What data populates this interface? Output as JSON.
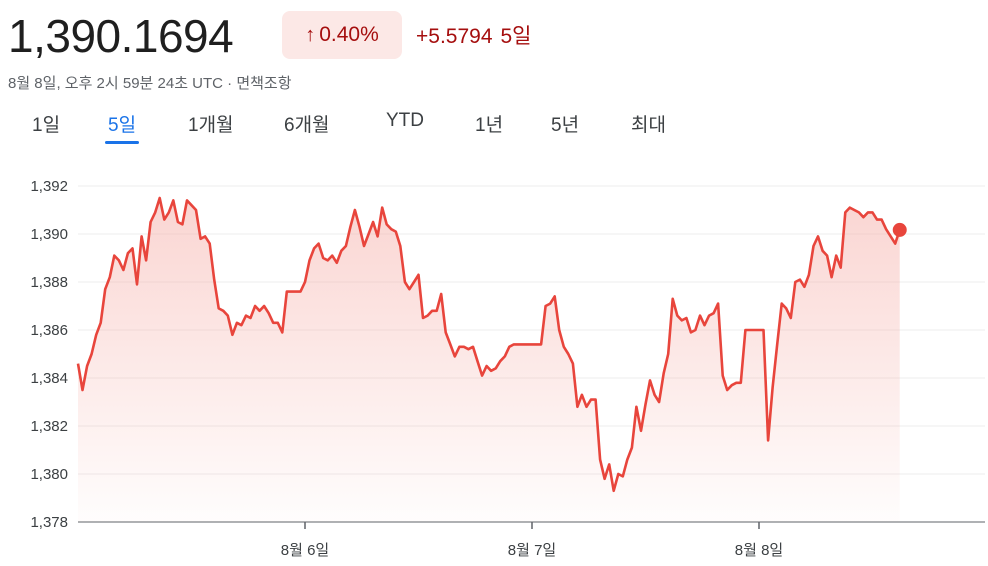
{
  "header": {
    "price": "1,390.1694",
    "change_arrow": "↑",
    "change_percent": "0.40%",
    "change_abs": "+5.5794",
    "change_period": "5일",
    "subtitle": "8월 8일, 오후 2시 59분 24초 UTC · 면책조항",
    "arrow_icon": "arrow-up-icon"
  },
  "tabs": [
    {
      "label": "1일",
      "active": false
    },
    {
      "label": "5일",
      "active": true
    },
    {
      "label": "1개월",
      "active": false
    },
    {
      "label": "6개월",
      "active": false
    },
    {
      "label": "YTD",
      "active": false
    },
    {
      "label": "1년",
      "active": false
    },
    {
      "label": "5년",
      "active": false
    },
    {
      "label": "최대",
      "active": false
    }
  ],
  "colors": {
    "line": "#e8453c",
    "fill": "#f6b3ad",
    "negative_text": "#a50e0e",
    "badge_bg": "#fce8e6",
    "active_tab": "#1a73e8"
  },
  "chart_data": {
    "type": "area",
    "ylim": [
      1378,
      1392
    ],
    "yticks": [
      "1,392",
      "1,390",
      "1,388",
      "1,386",
      "1,384",
      "1,382",
      "1,380",
      "1,378"
    ],
    "ytick_values": [
      1392,
      1390,
      1388,
      1386,
      1384,
      1382,
      1380,
      1378
    ],
    "xlim": [
      0,
      4
    ],
    "xticks": [
      {
        "label": "8월 6일",
        "pos": 1
      },
      {
        "label": "8월 7일",
        "pos": 2
      },
      {
        "label": "8월 8일",
        "pos": 3
      }
    ],
    "grid": true,
    "series": [
      {
        "x": [
          0.0,
          0.02,
          0.04,
          0.06,
          0.08,
          0.1,
          0.12,
          0.14,
          0.16,
          0.18,
          0.2,
          0.22,
          0.24,
          0.26,
          0.28,
          0.3,
          0.32,
          0.34,
          0.36,
          0.38,
          0.4,
          0.42,
          0.44,
          0.46,
          0.48,
          0.5,
          0.52,
          0.54,
          0.56,
          0.58,
          0.6,
          0.62,
          0.64,
          0.66,
          0.68,
          0.7,
          0.72,
          0.74,
          0.76,
          0.78,
          0.8,
          0.82,
          0.84,
          0.86,
          0.88,
          0.9,
          0.92,
          0.94,
          0.96,
          0.98,
          1.0,
          1.02,
          1.04,
          1.06,
          1.08,
          1.1,
          1.12,
          1.14,
          1.16,
          1.18,
          1.2,
          1.22,
          1.24,
          1.26,
          1.28,
          1.3,
          1.32,
          1.34,
          1.36,
          1.38,
          1.4,
          1.42,
          1.44,
          1.46,
          1.48,
          1.5,
          1.52,
          1.54,
          1.56,
          1.58,
          1.6,
          1.62,
          1.64,
          1.66,
          1.68,
          1.7,
          1.72,
          1.74,
          1.76,
          1.78,
          1.8,
          1.82,
          1.84,
          1.86,
          1.88,
          1.9,
          1.92,
          1.94,
          1.96,
          1.98,
          2.0,
          2.02,
          2.04,
          2.06,
          2.08,
          2.1,
          2.12,
          2.14,
          2.16,
          2.18,
          2.2,
          2.22,
          2.24,
          2.26,
          2.28,
          2.3,
          2.32,
          2.34,
          2.36,
          2.38,
          2.4,
          2.42,
          2.44,
          2.46,
          2.48,
          2.5,
          2.52,
          2.54,
          2.56,
          2.58,
          2.6,
          2.62,
          2.64,
          2.66,
          2.68,
          2.7,
          2.72,
          2.74,
          2.76,
          2.78,
          2.8,
          2.82,
          2.84,
          2.86,
          2.88,
          2.9,
          2.92,
          2.94,
          2.96,
          2.98,
          3.0,
          3.02,
          3.04,
          3.06,
          3.08,
          3.1,
          3.12,
          3.14,
          3.16,
          3.18,
          3.2,
          3.22,
          3.24,
          3.26,
          3.28,
          3.3,
          3.32,
          3.34,
          3.36,
          3.38,
          3.4,
          3.42,
          3.44,
          3.46,
          3.48,
          3.5,
          3.52,
          3.54,
          3.56,
          3.58,
          3.6,
          3.62
        ],
        "values": [
          1384.6,
          1383.5,
          1384.5,
          1385.0,
          1385.8,
          1386.3,
          1387.7,
          1388.2,
          1389.1,
          1388.9,
          1388.5,
          1389.2,
          1389.4,
          1387.9,
          1389.9,
          1388.9,
          1390.5,
          1390.9,
          1391.5,
          1390.6,
          1390.9,
          1391.4,
          1390.5,
          1390.4,
          1391.4,
          1391.2,
          1391.0,
          1389.8,
          1389.9,
          1389.6,
          1388.1,
          1386.9,
          1386.8,
          1386.6,
          1385.8,
          1386.3,
          1386.2,
          1386.6,
          1386.5,
          1387.0,
          1386.8,
          1387.0,
          1386.7,
          1386.3,
          1386.3,
          1385.9,
          1387.6,
          1387.6,
          1387.6,
          1387.6,
          1388.0,
          1388.9,
          1389.4,
          1389.6,
          1389.0,
          1388.9,
          1389.1,
          1388.8,
          1389.3,
          1389.5,
          1390.3,
          1391.0,
          1390.3,
          1389.5,
          1390.0,
          1390.5,
          1389.9,
          1391.1,
          1390.4,
          1390.2,
          1390.1,
          1389.5,
          1388.0,
          1387.7,
          1388.0,
          1388.3,
          1386.5,
          1386.6,
          1386.8,
          1386.8,
          1387.5,
          1385.9,
          1385.4,
          1384.9,
          1385.3,
          1385.3,
          1385.2,
          1385.3,
          1384.7,
          1384.1,
          1384.5,
          1384.3,
          1384.4,
          1384.7,
          1384.9,
          1385.3,
          1385.4,
          1385.4,
          1385.4,
          1385.4,
          1385.4,
          1385.4,
          1385.4,
          1387.0,
          1387.1,
          1387.4,
          1386.0,
          1385.3,
          1385.0,
          1384.6,
          1382.8,
          1383.3,
          1382.8,
          1383.1,
          1383.1,
          1380.6,
          1379.8,
          1380.4,
          1379.3,
          1380.0,
          1379.9,
          1380.6,
          1381.1,
          1382.8,
          1381.8,
          1382.9,
          1383.9,
          1383.3,
          1383.0,
          1384.2,
          1385.0,
          1387.3,
          1386.6,
          1386.4,
          1386.5,
          1385.9,
          1386.0,
          1386.6,
          1386.2,
          1386.6,
          1386.7,
          1387.1,
          1384.1,
          1383.5,
          1383.7,
          1383.8,
          1383.8,
          1386.0,
          1386.0,
          1386.0,
          1386.0,
          1386.0,
          1381.4,
          1383.6,
          1385.4,
          1387.1,
          1386.9,
          1386.5,
          1388.0,
          1388.1,
          1387.8,
          1388.3,
          1389.5,
          1389.9,
          1389.3,
          1389.1,
          1388.2,
          1389.1,
          1388.6,
          1390.9,
          1391.1,
          1391.0,
          1390.9,
          1390.7,
          1390.9,
          1390.9,
          1390.6,
          1390.6,
          1390.2,
          1389.9,
          1389.6,
          1390.17
        ]
      }
    ],
    "last_value": 1390.1694
  }
}
